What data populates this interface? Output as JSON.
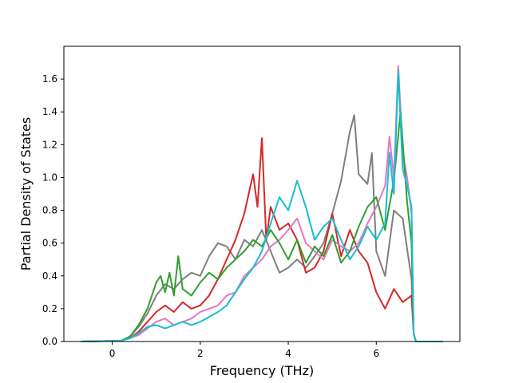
{
  "chart_data": {
    "type": "line",
    "title": "",
    "xlabel": "Frequency (THz)",
    "ylabel": "Partial Density of States",
    "xlim": [
      -1.1,
      7.9
    ],
    "ylim": [
      0.0,
      1.8
    ],
    "xticks": [
      0,
      2,
      4,
      6
    ],
    "yticks": [
      0.0,
      0.2,
      0.4,
      0.6,
      0.8,
      1.0,
      1.2,
      1.4,
      1.6
    ],
    "grid": false,
    "legend": "none",
    "series": [
      {
        "color": "#7f7f7f",
        "points": [
          [
            -0.7,
            0
          ],
          [
            0.2,
            0.005
          ],
          [
            0.4,
            0.03
          ],
          [
            0.6,
            0.09
          ],
          [
            0.8,
            0.17
          ],
          [
            1.0,
            0.28
          ],
          [
            1.2,
            0.35
          ],
          [
            1.4,
            0.32
          ],
          [
            1.6,
            0.38
          ],
          [
            1.8,
            0.42
          ],
          [
            2.0,
            0.4
          ],
          [
            2.2,
            0.52
          ],
          [
            2.4,
            0.6
          ],
          [
            2.6,
            0.58
          ],
          [
            2.8,
            0.5
          ],
          [
            3.0,
            0.62
          ],
          [
            3.2,
            0.58
          ],
          [
            3.4,
            0.68
          ],
          [
            3.6,
            0.55
          ],
          [
            3.8,
            0.42
          ],
          [
            4.0,
            0.45
          ],
          [
            4.2,
            0.5
          ],
          [
            4.4,
            0.45
          ],
          [
            4.6,
            0.52
          ],
          [
            4.8,
            0.6
          ],
          [
            5.0,
            0.78
          ],
          [
            5.2,
            0.98
          ],
          [
            5.4,
            1.28
          ],
          [
            5.5,
            1.38
          ],
          [
            5.6,
            1.02
          ],
          [
            5.8,
            0.96
          ],
          [
            5.9,
            1.15
          ],
          [
            6.0,
            0.55
          ],
          [
            6.2,
            0.4
          ],
          [
            6.4,
            0.8
          ],
          [
            6.6,
            0.75
          ],
          [
            6.8,
            0.38
          ],
          [
            6.85,
            0.05
          ],
          [
            6.9,
            0
          ],
          [
            7.5,
            0
          ]
        ]
      },
      {
        "color": "#d62728",
        "points": [
          [
            -0.7,
            0
          ],
          [
            0.2,
            0.005
          ],
          [
            0.4,
            0.02
          ],
          [
            0.6,
            0.06
          ],
          [
            0.8,
            0.12
          ],
          [
            1.0,
            0.18
          ],
          [
            1.2,
            0.22
          ],
          [
            1.4,
            0.18
          ],
          [
            1.6,
            0.24
          ],
          [
            1.8,
            0.2
          ],
          [
            2.0,
            0.22
          ],
          [
            2.2,
            0.28
          ],
          [
            2.4,
            0.38
          ],
          [
            2.6,
            0.5
          ],
          [
            2.8,
            0.62
          ],
          [
            3.0,
            0.78
          ],
          [
            3.2,
            1.02
          ],
          [
            3.3,
            0.82
          ],
          [
            3.4,
            1.24
          ],
          [
            3.5,
            0.62
          ],
          [
            3.6,
            0.82
          ],
          [
            3.8,
            0.68
          ],
          [
            4.0,
            0.72
          ],
          [
            4.2,
            0.62
          ],
          [
            4.4,
            0.42
          ],
          [
            4.6,
            0.45
          ],
          [
            4.8,
            0.55
          ],
          [
            5.0,
            0.78
          ],
          [
            5.2,
            0.52
          ],
          [
            5.4,
            0.68
          ],
          [
            5.6,
            0.55
          ],
          [
            5.8,
            0.48
          ],
          [
            6.0,
            0.3
          ],
          [
            6.2,
            0.2
          ],
          [
            6.4,
            0.32
          ],
          [
            6.6,
            0.24
          ],
          [
            6.8,
            0.28
          ],
          [
            6.85,
            0.05
          ],
          [
            6.9,
            0
          ],
          [
            7.5,
            0
          ]
        ]
      },
      {
        "color": "#e377c2",
        "points": [
          [
            -0.7,
            0
          ],
          [
            0.2,
            0.005
          ],
          [
            0.4,
            0.02
          ],
          [
            0.6,
            0.04
          ],
          [
            0.8,
            0.08
          ],
          [
            1.0,
            0.12
          ],
          [
            1.2,
            0.14
          ],
          [
            1.4,
            0.1
          ],
          [
            1.6,
            0.12
          ],
          [
            1.8,
            0.14
          ],
          [
            2.0,
            0.18
          ],
          [
            2.2,
            0.2
          ],
          [
            2.4,
            0.22
          ],
          [
            2.6,
            0.28
          ],
          [
            2.8,
            0.3
          ],
          [
            3.0,
            0.4
          ],
          [
            3.2,
            0.45
          ],
          [
            3.4,
            0.5
          ],
          [
            3.6,
            0.58
          ],
          [
            3.8,
            0.62
          ],
          [
            4.0,
            0.68
          ],
          [
            4.2,
            0.75
          ],
          [
            4.4,
            0.6
          ],
          [
            4.6,
            0.55
          ],
          [
            4.8,
            0.5
          ],
          [
            5.0,
            0.62
          ],
          [
            5.2,
            0.58
          ],
          [
            5.4,
            0.55
          ],
          [
            5.6,
            0.6
          ],
          [
            5.8,
            0.72
          ],
          [
            6.0,
            0.82
          ],
          [
            6.2,
            0.95
          ],
          [
            6.3,
            1.25
          ],
          [
            6.4,
            1.0
          ],
          [
            6.5,
            1.68
          ],
          [
            6.6,
            1.15
          ],
          [
            6.7,
            1.0
          ],
          [
            6.8,
            0.78
          ],
          [
            6.85,
            0.05
          ],
          [
            6.9,
            0
          ],
          [
            7.5,
            0
          ]
        ]
      },
      {
        "color": "#2ca02c",
        "points": [
          [
            -0.7,
            0
          ],
          [
            0.2,
            0.005
          ],
          [
            0.4,
            0.03
          ],
          [
            0.6,
            0.1
          ],
          [
            0.8,
            0.2
          ],
          [
            1.0,
            0.36
          ],
          [
            1.1,
            0.4
          ],
          [
            1.2,
            0.3
          ],
          [
            1.3,
            0.42
          ],
          [
            1.4,
            0.28
          ],
          [
            1.5,
            0.52
          ],
          [
            1.6,
            0.32
          ],
          [
            1.8,
            0.28
          ],
          [
            2.0,
            0.36
          ],
          [
            2.2,
            0.42
          ],
          [
            2.4,
            0.38
          ],
          [
            2.6,
            0.45
          ],
          [
            2.8,
            0.5
          ],
          [
            3.0,
            0.55
          ],
          [
            3.2,
            0.62
          ],
          [
            3.4,
            0.58
          ],
          [
            3.6,
            0.68
          ],
          [
            3.8,
            0.6
          ],
          [
            4.0,
            0.5
          ],
          [
            4.2,
            0.62
          ],
          [
            4.4,
            0.48
          ],
          [
            4.6,
            0.58
          ],
          [
            4.8,
            0.52
          ],
          [
            5.0,
            0.65
          ],
          [
            5.2,
            0.48
          ],
          [
            5.4,
            0.55
          ],
          [
            5.6,
            0.7
          ],
          [
            5.8,
            0.82
          ],
          [
            6.0,
            0.88
          ],
          [
            6.2,
            0.68
          ],
          [
            6.4,
            0.98
          ],
          [
            6.55,
            1.4
          ],
          [
            6.7,
            0.85
          ],
          [
            6.8,
            0.6
          ],
          [
            6.85,
            0.05
          ],
          [
            6.9,
            0
          ],
          [
            7.5,
            0
          ]
        ]
      },
      {
        "color": "#17becf",
        "points": [
          [
            -0.7,
            0
          ],
          [
            0.2,
            0.005
          ],
          [
            0.4,
            0.02
          ],
          [
            0.6,
            0.05
          ],
          [
            0.8,
            0.09
          ],
          [
            1.0,
            0.1
          ],
          [
            1.2,
            0.08
          ],
          [
            1.4,
            0.1
          ],
          [
            1.6,
            0.12
          ],
          [
            1.8,
            0.1
          ],
          [
            2.0,
            0.12
          ],
          [
            2.2,
            0.15
          ],
          [
            2.4,
            0.18
          ],
          [
            2.6,
            0.22
          ],
          [
            2.8,
            0.3
          ],
          [
            3.0,
            0.38
          ],
          [
            3.2,
            0.45
          ],
          [
            3.4,
            0.55
          ],
          [
            3.6,
            0.72
          ],
          [
            3.8,
            0.88
          ],
          [
            4.0,
            0.8
          ],
          [
            4.2,
            0.98
          ],
          [
            4.4,
            0.82
          ],
          [
            4.6,
            0.62
          ],
          [
            4.8,
            0.7
          ],
          [
            5.0,
            0.75
          ],
          [
            5.2,
            0.62
          ],
          [
            5.4,
            0.5
          ],
          [
            5.6,
            0.58
          ],
          [
            5.8,
            0.7
          ],
          [
            6.0,
            0.62
          ],
          [
            6.2,
            0.72
          ],
          [
            6.3,
            1.15
          ],
          [
            6.4,
            0.9
          ],
          [
            6.5,
            1.65
          ],
          [
            6.6,
            1.05
          ],
          [
            6.7,
            0.95
          ],
          [
            6.8,
            0.82
          ],
          [
            6.85,
            0.05
          ],
          [
            6.9,
            0
          ],
          [
            7.5,
            0
          ]
        ]
      }
    ]
  }
}
